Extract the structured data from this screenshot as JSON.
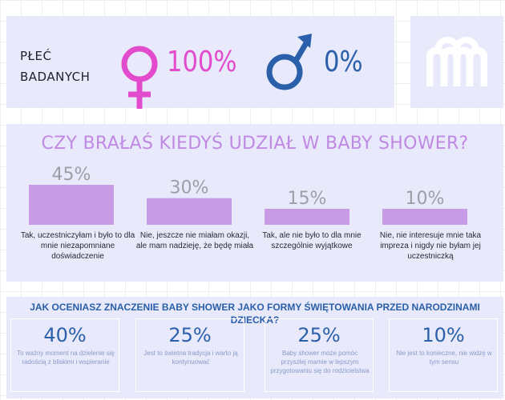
{
  "gender": {
    "label_line1": "PŁEĆ",
    "label_line2": "BADANYCH",
    "female_percent": "100%",
    "male_percent": "0%",
    "female_icon": "female-sign-icon",
    "male_icon": "male-sign-icon",
    "female_color": "#e24bcc",
    "male_color": "#2a5fa9"
  },
  "logo": {
    "icon": "logo-icon",
    "color": "#ffffff"
  },
  "chart_data": {
    "type": "bar",
    "title": "CZY BRAŁAŚ KIEDYŚ UDZIAŁ W BABY SHOWER?",
    "categories": [
      "Tak, uczestniczyłam i było to dla mnie niezapomniane doświadczenie",
      "Nie, jeszcze nie miałam okazji, ale mam nadzieję, że będę miała",
      "Tak, ale nie było to dla mnie szczególnie wyjątkowe",
      "Nie, nie interesuje mnie taka impreza i nigdy nie byłam jej uczestniczką"
    ],
    "values": [
      45,
      30,
      15,
      10
    ],
    "value_labels": [
      "45%",
      "30%",
      "15%",
      "10%"
    ],
    "unit": "%",
    "bar_color": "#c89be6",
    "value_label_color": "#9e9ea6"
  },
  "rating": {
    "question": "JAK OCENIASZ ZNACZENIE BABY SHOWER JAKO FORMY ŚWIĘTOWANIA PRZED NARODZINAMI DZIECKA?",
    "items": [
      {
        "percent": "40%",
        "text": "To ważny moment na dzielenie się radością z bliskimi i wspieranie"
      },
      {
        "percent": "25%",
        "text": "Jest to świetna tradycja i warto ją kontynuować"
      },
      {
        "percent": "25%",
        "text": "Baby shower może pomóc przyszłej mamie w lepszym przygotowaniu się do rodzicielstwa"
      },
      {
        "percent": "10%",
        "text": "Nie jest to konieczne, nie widzę w tym sensu"
      }
    ]
  }
}
